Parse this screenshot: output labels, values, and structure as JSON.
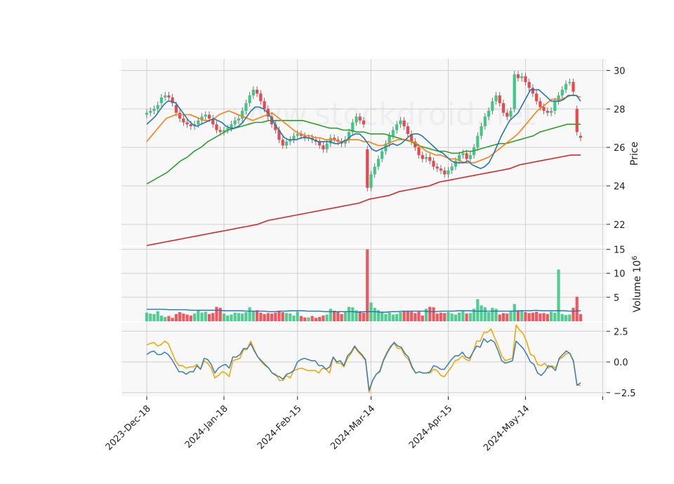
{
  "watermark": "www.stockdroid.net",
  "colors": {
    "up": "#3dc985",
    "down": "#f0454c",
    "ma5": "#1f77b4",
    "ma10": "#ff7f0e",
    "ma20": "#2ca02c",
    "ma60": "#d62728",
    "vol_ma": "#1f77b4",
    "osc_a": "#3a7db8",
    "osc_b": "#f5a300",
    "grid": "#d0d0d0",
    "panel_bg": "#f8f8f8"
  },
  "chart_data": {
    "type": "candlestick",
    "x_tick_labels": [
      "2023-Dec-18",
      "2024-Jan-18",
      "2024-Feb-15",
      "2024-Mar-14",
      "2024-Apr-15",
      "2024-May-14"
    ],
    "price_panel": {
      "ylabel": "Price",
      "y_ticks": [
        22,
        24,
        26,
        28,
        30
      ],
      "ylim": [
        20.9,
        30.6
      ],
      "closes": [
        27.8,
        27.9,
        28.0,
        28.2,
        28.6,
        28.7,
        28.6,
        28.3,
        27.8,
        27.5,
        27.3,
        27.2,
        27.1,
        27.2,
        27.4,
        27.6,
        27.7,
        27.5,
        27.2,
        26.9,
        26.8,
        26.9,
        27.0,
        27.2,
        27.4,
        27.5,
        27.9,
        28.3,
        28.7,
        29.0,
        28.8,
        28.4,
        28.0,
        27.6,
        27.2,
        26.9,
        26.4,
        26.1,
        26.3,
        26.4,
        26.6,
        26.7,
        26.6,
        26.5,
        26.5,
        26.4,
        26.3,
        26.1,
        25.9,
        26.2,
        26.5,
        26.4,
        26.3,
        26.2,
        26.4,
        26.8,
        27.3,
        27.6,
        27.4,
        27.2,
        23.9,
        24.6,
        25.0,
        25.4,
        25.8,
        26.2,
        26.6,
        26.9,
        27.2,
        27.4,
        27.1,
        26.7,
        26.3,
        26.0,
        25.6,
        25.4,
        25.5,
        25.3,
        25.0,
        24.9,
        24.8,
        24.6,
        24.8,
        25.0,
        25.3,
        25.6,
        25.7,
        25.4,
        25.6,
        26.0,
        26.6,
        27.1,
        27.6,
        27.9,
        28.4,
        28.7,
        28.3,
        27.8,
        27.6,
        27.9,
        29.8,
        29.6,
        29.7,
        29.4,
        29.1,
        28.8,
        28.4,
        28.1,
        27.9,
        27.8,
        27.9,
        28.4,
        28.7,
        29.0,
        29.3,
        29.4,
        28.9,
        26.8,
        26.5
      ],
      "opens": [
        27.7,
        27.8,
        27.9,
        28.0,
        28.3,
        28.6,
        28.7,
        28.6,
        28.2,
        27.8,
        27.5,
        27.3,
        27.2,
        27.1,
        27.2,
        27.4,
        27.6,
        27.7,
        27.5,
        27.2,
        26.9,
        26.8,
        26.9,
        27.0,
        27.2,
        27.4,
        27.5,
        27.9,
        28.3,
        28.7,
        29.0,
        28.8,
        28.4,
        28.0,
        27.6,
        27.2,
        26.9,
        26.4,
        26.1,
        26.3,
        26.4,
        26.6,
        26.7,
        26.6,
        26.5,
        26.5,
        26.4,
        26.3,
        26.1,
        25.9,
        26.2,
        26.5,
        26.4,
        26.3,
        26.2,
        26.4,
        26.8,
        27.3,
        27.6,
        27.4,
        25.9,
        23.9,
        24.6,
        25.0,
        25.4,
        25.8,
        26.2,
        26.6,
        26.9,
        27.2,
        27.4,
        27.1,
        26.7,
        26.3,
        26.0,
        25.6,
        25.4,
        25.5,
        25.3,
        25.0,
        24.9,
        24.8,
        24.6,
        24.8,
        25.0,
        25.3,
        25.6,
        25.7,
        25.4,
        25.6,
        26.0,
        26.6,
        27.1,
        27.6,
        27.9,
        28.4,
        28.7,
        28.3,
        27.8,
        27.6,
        28.0,
        29.8,
        29.6,
        29.7,
        29.4,
        29.1,
        28.8,
        28.4,
        28.1,
        27.9,
        27.8,
        27.9,
        28.4,
        28.7,
        29.0,
        29.4,
        29.4,
        28.0,
        26.6
      ],
      "ma5": [
        27.2,
        27.4,
        27.6,
        27.9,
        28.2,
        28.4,
        28.4,
        28.3,
        28.0,
        27.7,
        27.4,
        27.2,
        27.1,
        27.2,
        27.3,
        27.4,
        27.5,
        27.4,
        27.3,
        27.1,
        27.0,
        27.0,
        27.1,
        27.3,
        27.6,
        27.9,
        28.1,
        28.1,
        28.0,
        27.8,
        27.5,
        27.1,
        26.8,
        26.5,
        26.4,
        26.4,
        26.4,
        26.5,
        26.5,
        26.5,
        26.4,
        26.3,
        26.3,
        26.3,
        26.3,
        26.2,
        26.2,
        26.3,
        26.4,
        26.6,
        26.7,
        26.7,
        26.5,
        26.2,
        25.9,
        25.8,
        25.9,
        26.0,
        26.1,
        26.2,
        26.1,
        26.2,
        26.4,
        26.6,
        26.7,
        26.7,
        26.6,
        26.4,
        26.2,
        26.0,
        25.8,
        25.7,
        25.5,
        25.3,
        25.2,
        25.2,
        25.2,
        25.3,
        25.1,
        25.0,
        24.9,
        25.0,
        25.2,
        25.6,
        26.1,
        26.6,
        27.0,
        27.4,
        27.6,
        27.8,
        28.2,
        28.6,
        29.0,
        29.0,
        29.0,
        28.8,
        28.6,
        28.4,
        28.4,
        28.4,
        28.5,
        28.7,
        28.7,
        28.7,
        28.4
      ],
      "ma10": [
        26.3,
        26.6,
        26.9,
        27.2,
        27.5,
        27.6,
        27.7,
        27.7,
        27.7,
        27.7,
        27.6,
        27.5,
        27.4,
        27.4,
        27.5,
        27.7,
        27.8,
        27.9,
        27.8,
        27.7,
        27.6,
        27.5,
        27.4,
        27.5,
        27.6,
        27.7,
        27.8,
        27.6,
        27.4,
        27.2,
        27.0,
        26.8,
        26.7,
        26.6,
        26.6,
        26.5,
        26.5,
        26.4,
        26.4,
        26.4,
        26.3,
        26.3,
        26.4,
        26.4,
        26.4,
        26.3,
        26.3,
        26.2,
        26.1,
        26.1,
        26.2,
        26.3,
        26.4,
        26.4,
        26.4,
        26.3,
        26.2,
        26.0,
        25.8,
        25.7,
        25.6,
        25.6,
        25.5,
        25.4,
        25.4,
        25.3,
        25.2,
        25.2,
        25.2,
        25.3,
        25.4,
        25.5,
        25.7,
        25.9,
        26.1,
        26.3,
        26.5,
        26.7,
        27.0,
        27.3,
        27.6,
        27.9,
        28.1,
        28.3,
        28.5,
        28.5,
        28.5,
        28.6,
        28.7,
        28.7,
        28.6
      ],
      "ma20": [
        24.1,
        24.3,
        24.5,
        24.7,
        25.0,
        25.3,
        25.5,
        25.8,
        26.0,
        26.3,
        26.5,
        26.7,
        26.9,
        27.0,
        27.1,
        27.2,
        27.3,
        27.3,
        27.4,
        27.4,
        27.4,
        27.4,
        27.4,
        27.4,
        27.3,
        27.2,
        27.1,
        27.0,
        27.0,
        26.9,
        26.9,
        26.8,
        26.8,
        26.7,
        26.7,
        26.7,
        26.6,
        26.5,
        26.4,
        26.3,
        26.1,
        26.0,
        25.9,
        25.8,
        25.8,
        25.7,
        25.7,
        25.8,
        25.8,
        25.9,
        26.0,
        26.1,
        26.2,
        26.2,
        26.3,
        26.4,
        26.5,
        26.6,
        26.8,
        26.9,
        27.0,
        27.1,
        27.2,
        27.2,
        27.2
      ],
      "ma60": [
        20.9,
        21.0,
        21.1,
        21.2,
        21.3,
        21.4,
        21.5,
        21.6,
        21.7,
        21.8,
        21.9,
        22.0,
        22.2,
        22.3,
        22.4,
        22.5,
        22.6,
        22.7,
        22.8,
        22.9,
        23.0,
        23.1,
        23.3,
        23.4,
        23.5,
        23.7,
        23.8,
        23.9,
        24.0,
        24.2,
        24.3,
        24.4,
        24.5,
        24.6,
        24.7,
        24.8,
        24.9,
        25.1,
        25.2,
        25.3,
        25.4,
        25.5,
        25.6,
        25.6
      ]
    },
    "volume_panel": {
      "ylabel": "Volume  10^6",
      "y_ticks": [
        5,
        10,
        15
      ],
      "ylim": [
        0,
        15.5
      ],
      "values": [
        1.8,
        1.6,
        1.5,
        2.1,
        1.2,
        0.9,
        1.1,
        0.7,
        1.5,
        1.9,
        1.6,
        1.4,
        1.2,
        1.6,
        2.3,
        1.8,
        2.0,
        1.5,
        1.7,
        3.0,
        2.8,
        1.6,
        1.2,
        1.4,
        1.8,
        1.7,
        1.6,
        1.9,
        2.9,
        2.2,
        2.3,
        1.8,
        1.5,
        1.7,
        1.6,
        1.8,
        2.2,
        1.9,
        1.7,
        1.6,
        1.2,
        2.0,
        1.1,
        0.8,
        0.8,
        1.1,
        0.7,
        0.9,
        1.2,
        1.4,
        2.6,
        2.2,
        2.0,
        1.5,
        1.9,
        3.0,
        2.9,
        2.3,
        2.1,
        1.8,
        15.0,
        3.9,
        2.8,
        2.3,
        1.9,
        1.5,
        1.8,
        1.4,
        1.5,
        1.9,
        2.2,
        2.1,
        2.0,
        1.7,
        2.0,
        1.2,
        2.6,
        3.0,
        2.9,
        1.6,
        1.8,
        1.7,
        1.9,
        1.6,
        1.4,
        1.8,
        2.1,
        1.6,
        1.7,
        2.6,
        4.6,
        3.3,
        2.9,
        1.9,
        2.8,
        2.6,
        1.4,
        1.7,
        1.6,
        2.0,
        3.6,
        2.2,
        2.3,
        1.9,
        1.7,
        1.8,
        2.0,
        1.6,
        1.7,
        1.5,
        2.0,
        1.8,
        10.8,
        1.5,
        1.3,
        1.4,
        2.8,
        5.1,
        1.5
      ],
      "ma": [
        2.5,
        2.5,
        2.5,
        2.5,
        2.4,
        2.4,
        2.4,
        2.4,
        2.3,
        2.3,
        2.3,
        2.3,
        2.3,
        2.3,
        2.2,
        2.2,
        2.2,
        2.2,
        2.1,
        2.1,
        2.1,
        2.1,
        2.0,
        2.0,
        2.1,
        2.1,
        2.2,
        2.2,
        2.2,
        2.1,
        2.1,
        2.1,
        2.0,
        2.0,
        2.0,
        2.0,
        2.0,
        2.0,
        1.9,
        2.0,
        2.0,
        2.0,
        1.9,
        1.9,
        2.0,
        2.0,
        2.1,
        2.1,
        2.1,
        2.1,
        2.1,
        2.0,
        2.0,
        2.1,
        2.1,
        2.1,
        2.2,
        2.2,
        2.2,
        2.1,
        2.1,
        2.1,
        2.1,
        2.1,
        2.1,
        2.1,
        2.1,
        2.2,
        2.2,
        2.2,
        2.3,
        2.2,
        2.2,
        2.2,
        2.2,
        2.2,
        2.1,
        2.1,
        2.2
      ]
    },
    "oscillator_panel": {
      "y_ticks": [
        -2.5,
        0.0,
        2.5
      ],
      "ylim": [
        -2.8,
        3.2
      ],
      "series_a": [
        0.6,
        0.8,
        0.9,
        0.6,
        0.6,
        0.8,
        0.6,
        0.2,
        -0.3,
        -0.8,
        -0.8,
        -1.0,
        -0.8,
        -0.8,
        -0.3,
        -0.6,
        0.3,
        0.2,
        -0.2,
        -0.9,
        -0.5,
        -0.3,
        -0.2,
        -0.5,
        0.4,
        0.4,
        0.6,
        1.1,
        1.1,
        1.5,
        0.9,
        0.4,
        0.1,
        -0.2,
        -0.5,
        -0.9,
        -1.1,
        -1.2,
        -1.4,
        -1.0,
        -0.9,
        -0.7,
        0.0,
        0.2,
        0.3,
        0.2,
        0.1,
        0.1,
        -0.3,
        -0.3,
        -0.6,
        -0.4,
        0.4,
        0.0,
        0.1,
        -0.3,
        0.5,
        0.8,
        1.3,
        0.9,
        0.6,
        0.2,
        -2.3,
        -1.5,
        -1.0,
        -0.8,
        0.1,
        0.7,
        1.2,
        1.6,
        1.3,
        1.2,
        0.7,
        0.4,
        -0.4,
        -0.9,
        -0.8,
        -0.9,
        -0.9,
        -0.8,
        -0.3,
        -0.4,
        -0.6,
        -0.6,
        -0.2,
        0.2,
        0.5,
        0.5,
        0.8,
        0.4,
        0.3,
        0.8,
        1.3,
        1.2,
        1.9,
        1.6,
        1.8,
        1.6,
        0.9,
        0.1,
        -0.1,
        0.0,
        0.1,
        1.7,
        1.4,
        1.1,
        0.6,
        0.0,
        -0.2,
        -0.9,
        -1.1,
        -0.8,
        -0.3,
        -0.4,
        -0.7,
        0.3,
        0.6,
        0.9,
        0.7,
        0.1,
        -1.9,
        -1.7
      ],
      "series_b": [
        1.4,
        1.5,
        1.6,
        1.3,
        1.4,
        1.7,
        1.5,
        0.8,
        0.1,
        -0.3,
        -0.3,
        -0.5,
        -0.4,
        -0.4,
        -0.2,
        -0.6,
        0.1,
        -0.1,
        -0.5,
        -1.3,
        -1.1,
        -0.8,
        -0.9,
        -1.2,
        0.1,
        0.2,
        0.3,
        1.0,
        1.0,
        1.7,
        1.0,
        0.4,
        0.0,
        -0.3,
        -0.5,
        -0.9,
        -1.0,
        -1.5,
        -1.5,
        -1.1,
        -1.3,
        -0.7,
        -0.6,
        -0.5,
        -0.6,
        -0.7,
        -0.7,
        -0.7,
        -0.9,
        -0.5,
        -0.6,
        -0.9,
        0.4,
        -0.1,
        -0.1,
        -0.4,
        0.3,
        0.7,
        1.2,
        0.8,
        0.5,
        0.1,
        -2.5,
        -1.5,
        -1.0,
        -0.7,
        0.2,
        0.8,
        1.3,
        1.5,
        1.1,
        1.1,
        0.5,
        0.2,
        -0.5,
        -0.9,
        -0.8,
        -0.9,
        -0.9,
        -0.9,
        -0.6,
        -0.7,
        -1.1,
        -1.2,
        -0.8,
        -0.4,
        0.1,
        0.2,
        0.5,
        0.2,
        0.1,
        0.8,
        1.7,
        1.7,
        2.4,
        2.4,
        2.7,
        2.0,
        1.3,
        0.5,
        0.1,
        0.2,
        0.3,
        3.0,
        2.6,
        2.3,
        1.6,
        0.6,
        0.5,
        -0.2,
        -0.3,
        -0.1,
        -0.5,
        -0.3,
        -0.5,
        0.2,
        0.4,
        0.7,
        0.7,
        0.0,
        -1.9,
        -1.9
      ]
    }
  }
}
